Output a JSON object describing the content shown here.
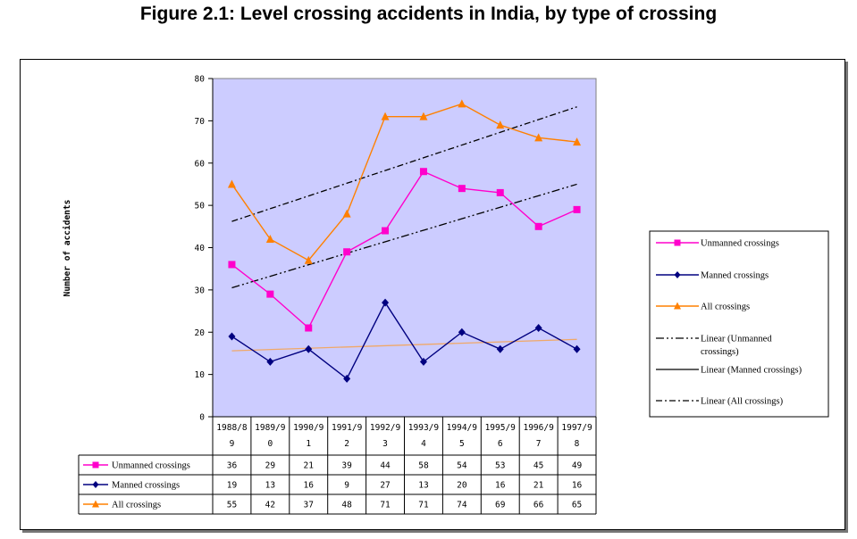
{
  "title": "Figure 2.1:  Level crossing accidents in India, by type of crossing",
  "chart_data": {
    "type": "line",
    "title": "Figure 2.1:  Level crossing accidents in India, by type of crossing",
    "ylabel": "Number of accidents",
    "xlabel": "",
    "ylim": [
      0,
      80
    ],
    "yticks": [
      "0",
      "10",
      "20",
      "30",
      "40",
      "50",
      "60",
      "70",
      "80"
    ],
    "categories": [
      [
        "1988/8",
        "9"
      ],
      [
        "1989/9",
        "0"
      ],
      [
        "1990/9",
        "1"
      ],
      [
        "1991/9",
        "2"
      ],
      [
        "1992/9",
        "3"
      ],
      [
        "1993/9",
        "4"
      ],
      [
        "1994/9",
        "5"
      ],
      [
        "1995/9",
        "6"
      ],
      [
        "1996/9",
        "7"
      ],
      [
        "1997/9",
        "8"
      ]
    ],
    "series": [
      {
        "name": "Unmanned crossings",
        "color": "#FF00CC",
        "marker": "square",
        "values": [
          36,
          29,
          21,
          39,
          44,
          58,
          54,
          53,
          45,
          49
        ]
      },
      {
        "name": "Manned crossings",
        "color": "#000080",
        "marker": "diamond",
        "values": [
          19,
          13,
          16,
          9,
          27,
          13,
          20,
          16,
          21,
          16
        ]
      },
      {
        "name": "All crossings",
        "color": "#FF8000",
        "marker": "triangle",
        "values": [
          55,
          42,
          37,
          48,
          71,
          71,
          74,
          69,
          66,
          65
        ]
      }
    ],
    "trendlines": [
      {
        "name": "Linear (Unmanned crossings)",
        "start": 30.5,
        "end": 55.0
      },
      {
        "name": "Linear (Manned crossings)",
        "start": 15.6,
        "end": 18.3
      },
      {
        "name": "Linear (All crossings)",
        "start": 46.2,
        "end": 73.3
      }
    ],
    "plot_background": "#CCCCFF",
    "legend_position": "right",
    "data_table": true
  },
  "legend": [
    "Unmanned crossings",
    "Manned crossings",
    "All crossings",
    "Linear (Unmanned crossings)",
    "Linear (Manned crossings)",
    "Linear (All crossings)"
  ]
}
